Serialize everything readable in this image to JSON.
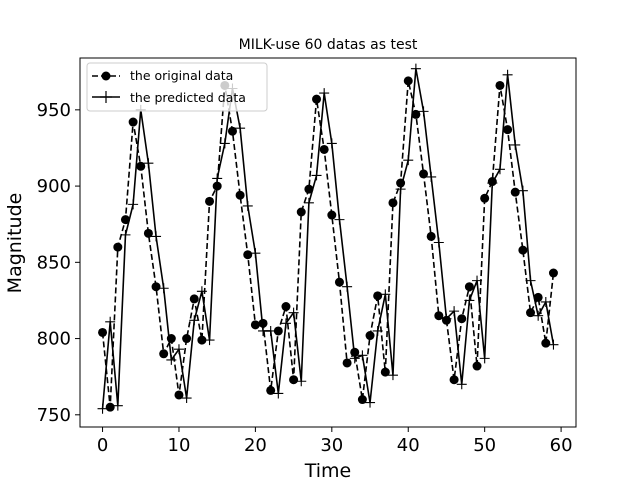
{
  "chart_data": {
    "type": "line",
    "title": "MILK-use 60 datas as test",
    "xlabel": "Time",
    "ylabel": "Magnitude",
    "xlim": [
      -2.95,
      61.95
    ],
    "ylim": [
      742,
      984
    ],
    "xticks": [
      0,
      10,
      20,
      30,
      40,
      50,
      60
    ],
    "yticks": [
      750,
      800,
      850,
      900,
      950
    ],
    "legend_position": "upper left",
    "grid": false,
    "series": [
      {
        "name": "the original data",
        "style": "dashed",
        "marker": "circle",
        "color": "#000000",
        "x": [
          0,
          1,
          2,
          3,
          4,
          5,
          6,
          7,
          8,
          9,
          10,
          11,
          12,
          13,
          14,
          15,
          16,
          17,
          18,
          19,
          20,
          21,
          22,
          23,
          24,
          25,
          26,
          27,
          28,
          29,
          30,
          31,
          32,
          33,
          34,
          35,
          36,
          37,
          38,
          39,
          40,
          41,
          42,
          43,
          44,
          45,
          46,
          47,
          48,
          49,
          50,
          51,
          52,
          53,
          54,
          55,
          56,
          57,
          58,
          59
        ],
        "values": [
          804,
          755,
          860,
          878,
          942,
          913,
          869,
          834,
          790,
          800,
          763,
          800,
          826,
          799,
          890,
          900,
          966,
          936,
          894,
          855,
          809,
          810,
          766,
          805,
          821,
          773,
          883,
          898,
          957,
          924,
          881,
          837,
          784,
          791,
          760,
          802,
          828,
          778,
          889,
          902,
          969,
          947,
          908,
          867,
          815,
          812,
          773,
          813,
          834,
          782,
          892,
          903,
          966,
          937,
          896,
          858,
          817,
          827,
          797,
          843
        ]
      },
      {
        "name": "the predicted data",
        "style": "solid",
        "marker": "plus",
        "color": "#000000",
        "x": [
          0,
          1,
          2,
          3,
          4,
          5,
          6,
          7,
          8,
          9,
          10,
          11,
          12,
          13,
          14,
          15,
          16,
          17,
          18,
          19,
          20,
          21,
          22,
          23,
          24,
          25,
          26,
          27,
          28,
          29,
          30,
          31,
          32,
          33,
          34,
          35,
          36,
          37,
          38,
          39,
          40,
          41,
          42,
          43,
          44,
          45,
          46,
          47,
          48,
          49,
          50,
          51,
          52,
          53,
          54,
          55,
          56,
          57,
          58,
          59
        ],
        "values": [
          754,
          811,
          756,
          868,
          888,
          950,
          915,
          867,
          833,
          786,
          793,
          761,
          812,
          831,
          799,
          905,
          928,
          964,
          938,
          887,
          856,
          805,
          805,
          764,
          810,
          817,
          772,
          889,
          907,
          961,
          928,
          878,
          834,
          787,
          789,
          758,
          805,
          829,
          776,
          898,
          917,
          977,
          949,
          906,
          863,
          813,
          818,
          770,
          825,
          838,
          787,
          902,
          911,
          973,
          927,
          897,
          838,
          815,
          824,
          796
        ]
      }
    ]
  }
}
